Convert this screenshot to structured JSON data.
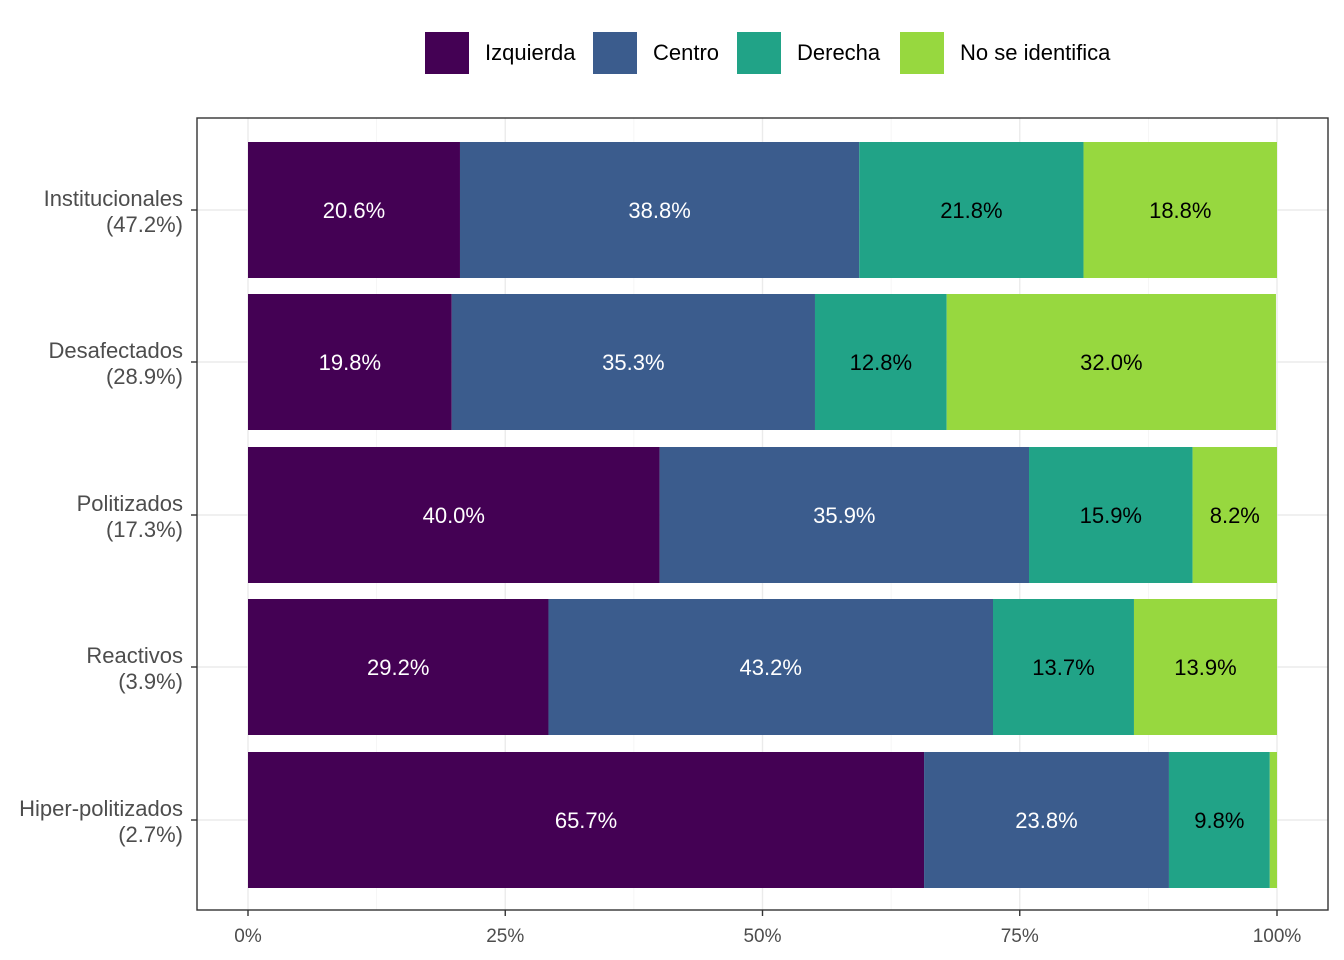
{
  "chart_data": {
    "type": "bar",
    "orientation": "horizontal",
    "stacked": true,
    "title": "",
    "xlabel": "",
    "ylabel": "",
    "xlim": [
      0,
      100
    ],
    "x_ticks": [
      0,
      25,
      50,
      75,
      100
    ],
    "x_tick_labels": [
      "0%",
      "25%",
      "50%",
      "75%",
      "100%"
    ],
    "grid": true,
    "legend_position": "top",
    "categories": [
      "Institucionales\n(47.2%)",
      "Desafectados\n(28.9%)",
      "Politizados\n(17.3%)",
      "Reactivos\n(3.9%)",
      "Hiper-politizados\n(2.7%)"
    ],
    "series": [
      {
        "name": "Izquierda",
        "color": "#440154",
        "label_color": "#ffffff",
        "values": [
          20.6,
          19.8,
          40.0,
          29.2,
          65.7
        ],
        "labels": [
          "20.6%",
          "19.8%",
          "40.0%",
          "29.2%",
          "65.7%"
        ]
      },
      {
        "name": "Centro",
        "color": "#3b5c8d",
        "label_color": "#ffffff",
        "values": [
          38.8,
          35.3,
          35.9,
          43.2,
          23.8
        ],
        "labels": [
          "38.8%",
          "35.3%",
          "35.9%",
          "43.2%",
          "23.8%"
        ]
      },
      {
        "name": "Derecha",
        "color": "#21a387",
        "label_color": "#000000",
        "values": [
          21.8,
          12.8,
          15.9,
          13.7,
          9.8
        ],
        "labels": [
          "21.8%",
          "12.8%",
          "15.9%",
          "13.7%",
          "9.8%"
        ]
      },
      {
        "name": "No se identifica",
        "color": "#97d83f",
        "label_color": "#000000",
        "values": [
          18.8,
          32.0,
          8.2,
          13.9,
          0.7
        ],
        "labels": [
          "18.8%",
          "32.0%",
          "8.2%",
          "13.9%",
          ""
        ]
      }
    ]
  }
}
